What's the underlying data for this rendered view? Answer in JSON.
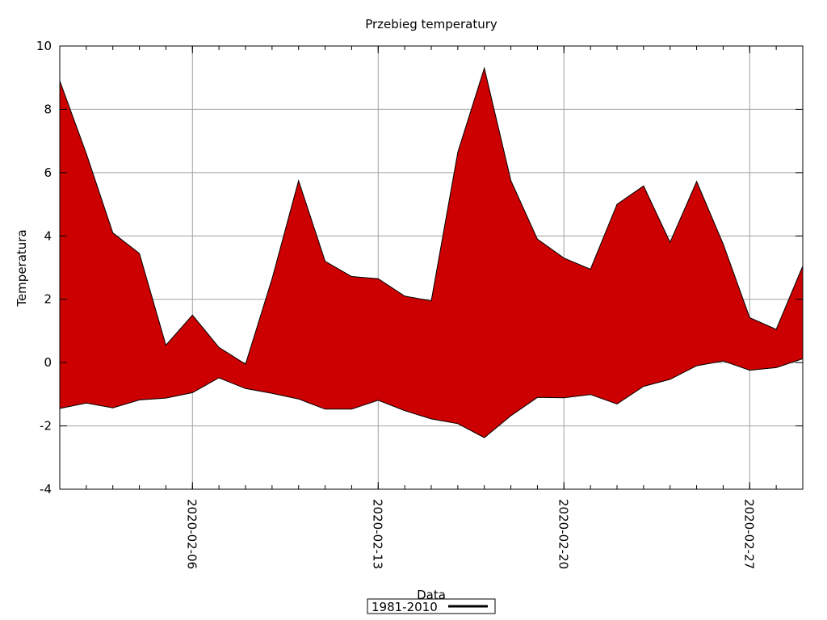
{
  "chart_data": {
    "type": "area",
    "title": "Przebieg temperatury",
    "xlabel": "Data",
    "ylabel": "Temperatura",
    "ylim": [
      -4,
      10
    ],
    "y_ticks": [
      -4,
      -2,
      0,
      2,
      4,
      6,
      8,
      10
    ],
    "x_range": [
      "2020-02-01",
      "2020-02-29"
    ],
    "x_ticks": [
      "2020-02-06",
      "2020-02-13",
      "2020-02-20",
      "2020-02-27"
    ],
    "grid": true,
    "legend_position": "bottom-center",
    "fill_color": "#cc0000",
    "line_color": "#000000",
    "series": [
      {
        "name": "1981-2010",
        "x": [
          "2020-02-01",
          "2020-02-02",
          "2020-02-03",
          "2020-02-04",
          "2020-02-05",
          "2020-02-06",
          "2020-02-07",
          "2020-02-08",
          "2020-02-09",
          "2020-02-10",
          "2020-02-11",
          "2020-02-12",
          "2020-02-13",
          "2020-02-14",
          "2020-02-15",
          "2020-02-16",
          "2020-02-17",
          "2020-02-18",
          "2020-02-19",
          "2020-02-20",
          "2020-02-21",
          "2020-02-22",
          "2020-02-23",
          "2020-02-24",
          "2020-02-25",
          "2020-02-26",
          "2020-02-27",
          "2020-02-28",
          "2020-02-29"
        ],
        "upper": [
          8.9,
          6.6,
          4.1,
          3.45,
          0.55,
          1.5,
          0.48,
          -0.05,
          2.65,
          5.75,
          3.2,
          2.72,
          2.65,
          2.1,
          1.95,
          6.65,
          9.3,
          5.75,
          3.9,
          3.3,
          2.95,
          5.0,
          5.58,
          3.8,
          5.72,
          3.75,
          1.42,
          1.05,
          3.05
        ],
        "lower": [
          -1.45,
          -1.28,
          -1.43,
          -1.18,
          -1.12,
          -0.95,
          -0.48,
          -0.82,
          -0.97,
          -1.15,
          -1.47,
          -1.47,
          -1.19,
          -1.52,
          -1.78,
          -1.93,
          -2.37,
          -1.68,
          -1.1,
          -1.11,
          -1.01,
          -1.31,
          -0.75,
          -0.53,
          -0.1,
          0.05,
          -0.24,
          -0.16,
          0.12
        ]
      }
    ]
  }
}
